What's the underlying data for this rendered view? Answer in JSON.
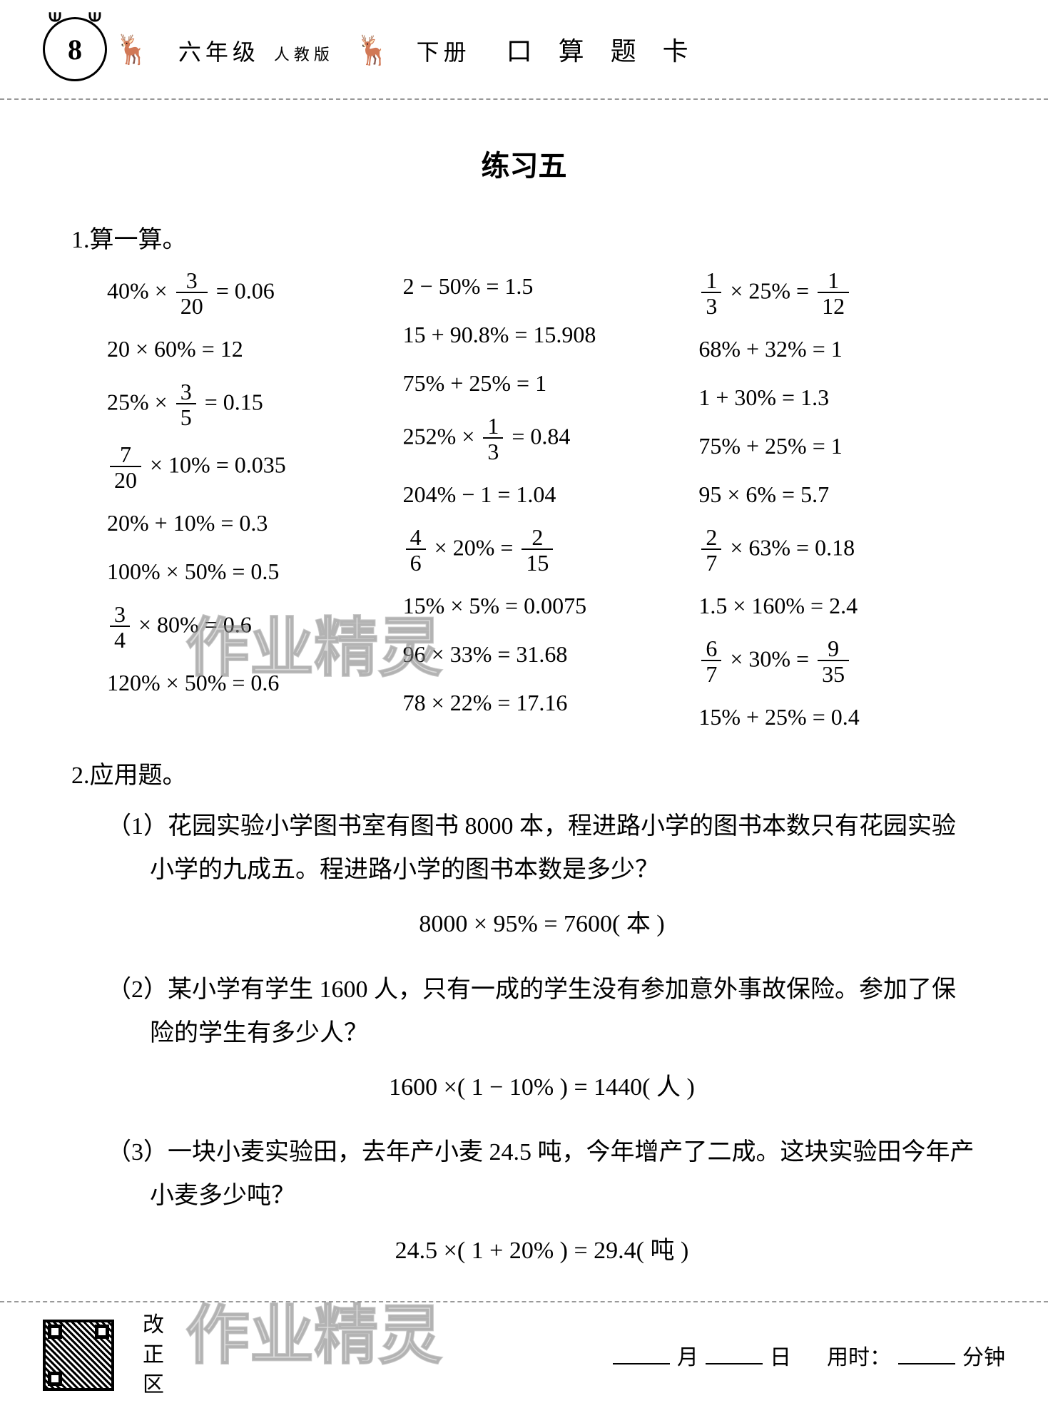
{
  "header": {
    "page_number": "8",
    "grade": "六年级",
    "publisher": "人教版",
    "volume": "下册",
    "book_title": "口 算 题 卡"
  },
  "exercise_title": "练习五",
  "section1": {
    "title": "1.算一算。",
    "col1": [
      {
        "lhs": "40% × ",
        "frac": {
          "n": "3",
          "d": "20"
        },
        "rhs": " = 0.06"
      },
      {
        "lhs": "20 × 60% = 12"
      },
      {
        "lhs": "25% × ",
        "frac": {
          "n": "3",
          "d": "5"
        },
        "rhs": " = 0.15"
      },
      {
        "frac_first": {
          "n": "7",
          "d": "20"
        },
        "rhs": " × 10% = 0.035"
      },
      {
        "lhs": "20% + 10% = 0.3"
      },
      {
        "lhs": "100% × 50% = 0.5"
      },
      {
        "frac_first": {
          "n": "3",
          "d": "4"
        },
        "rhs": " × 80% = 0.6"
      },
      {
        "lhs": "120% × 50% = 0.6"
      }
    ],
    "col2": [
      {
        "lhs": "2 − 50% = 1.5"
      },
      {
        "lhs": "15 + 90.8% = 15.908"
      },
      {
        "lhs": "75% + 25% = 1"
      },
      {
        "lhs": "252% × ",
        "frac": {
          "n": "1",
          "d": "3"
        },
        "rhs": " = 0.84"
      },
      {
        "lhs": "204% − 1 = 1.04"
      },
      {
        "frac_first": {
          "n": "4",
          "d": "6"
        },
        "mid": " × 20% = ",
        "frac": {
          "n": "2",
          "d": "15"
        }
      },
      {
        "lhs": "15% × 5% = 0.0075"
      },
      {
        "lhs": "96 × 33% = 31.68"
      },
      {
        "lhs": "78 × 22% = 17.16"
      }
    ],
    "col3": [
      {
        "frac_first": {
          "n": "1",
          "d": "3"
        },
        "mid": " × 25% = ",
        "frac": {
          "n": "1",
          "d": "12"
        }
      },
      {
        "lhs": "68% + 32% = 1"
      },
      {
        "lhs": "1 + 30% = 1.3"
      },
      {
        "lhs": "75% + 25% = 1"
      },
      {
        "lhs": "95 × 6% = 5.7"
      },
      {
        "frac_first": {
          "n": "2",
          "d": "7"
        },
        "rhs": " × 63% = 0.18"
      },
      {
        "lhs": "1.5 × 160% = 2.4"
      },
      {
        "frac_first": {
          "n": "6",
          "d": "7"
        },
        "mid": " × 30% = ",
        "frac": {
          "n": "9",
          "d": "35"
        }
      },
      {
        "lhs": "15% + 25% = 0.4"
      }
    ]
  },
  "section2": {
    "title": "2.应用题。",
    "problems": [
      {
        "num": "（1）",
        "text": "花园实验小学图书室有图书 8000 本，程进路小学的图书本数只有花园实验小学的九成五。程进路小学的图书本数是多少？",
        "answer": "8000 × 95% = 7600( 本 )"
      },
      {
        "num": "（2）",
        "text": "某小学有学生 1600 人，只有一成的学生没有参加意外事故保险。参加了保险的学生有多少人？",
        "answer": "1600 ×( 1 − 10% ) = 1440( 人 )"
      },
      {
        "num": "（3）",
        "text": "一块小麦实验田，去年产小麦 24.5 吨，今年增产了二成。这块实验田今年产小麦多少吨？",
        "answer": "24.5 ×( 1 + 20% ) = 29.4( 吨 )"
      }
    ]
  },
  "footer": {
    "correction_label": "改\n正\n区",
    "month": "月",
    "day": "日",
    "time_label": "用时：",
    "time_unit": "分钟"
  },
  "watermark_text": "作业精灵",
  "colors": {
    "text": "#000000",
    "background": "#ffffff",
    "dashed_border": "#999999",
    "watermark": "rgba(150,150,150,0.35)"
  },
  "typography": {
    "body_font": "SimSun, serif",
    "math_font": "Times New Roman, serif",
    "title_fontsize": 40,
    "section_fontsize": 34,
    "equation_fontsize": 32,
    "header_fontsize": 32
  }
}
